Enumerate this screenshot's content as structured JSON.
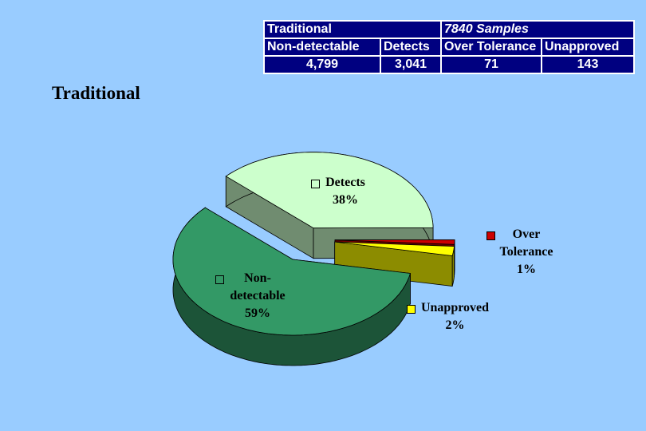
{
  "table": {
    "header": [
      "Traditional",
      "7840  Samples"
    ],
    "columns": [
      "Non-detectable",
      "Detects",
      "Over Tolerance",
      "Unapproved"
    ],
    "rows": [
      [
        "4,799",
        "3,041",
        "71",
        "143"
      ]
    ]
  },
  "chart_data": {
    "type": "pie",
    "title": "Traditional",
    "categories": [
      "Non-detectable",
      "Detects",
      "Over Tolerance",
      "Unapproved"
    ],
    "values": [
      59,
      38,
      1,
      2
    ],
    "value_labels": [
      "59%",
      "38%",
      "1%",
      "2%"
    ],
    "colors": [
      "#339966",
      "#ccffcc",
      "#cc0000",
      "#ffff00"
    ]
  }
}
